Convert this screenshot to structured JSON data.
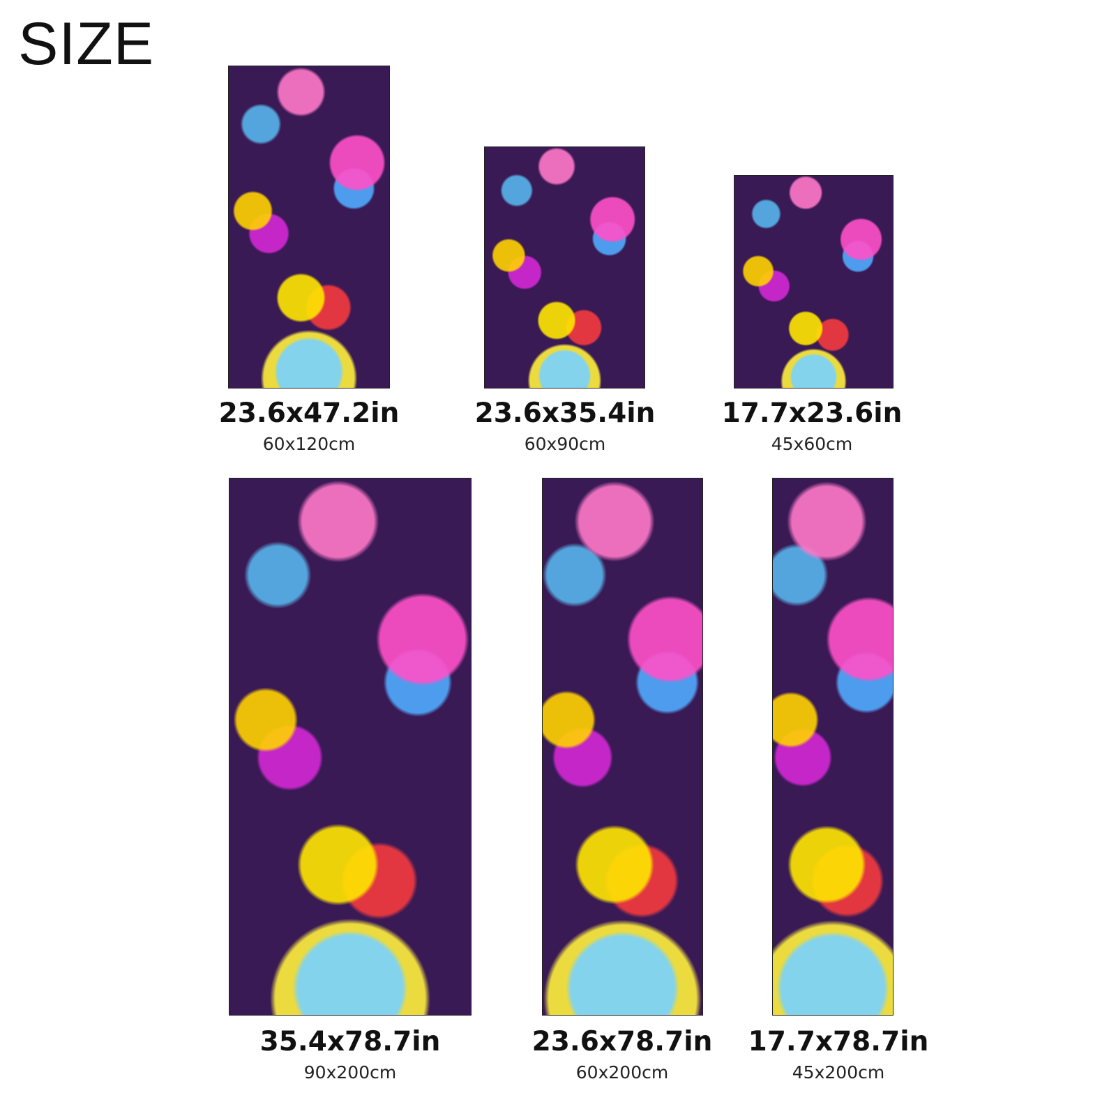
{
  "title": "SIZE",
  "sizes": [
    {
      "inches": "23.6x47.2in",
      "cm": "60x120cm"
    },
    {
      "inches": "23.6x35.4in",
      "cm": "60x90cm"
    },
    {
      "inches": "17.7x23.6in",
      "cm": "45x60cm"
    },
    {
      "inches": "35.4x78.7in",
      "cm": "90x200cm"
    },
    {
      "inches": "23.6x78.7in",
      "cm": "60x200cm"
    },
    {
      "inches": "17.7x78.7in",
      "cm": "45x200cm"
    }
  ],
  "colors": {
    "rug_background": "#3a1a55"
  }
}
